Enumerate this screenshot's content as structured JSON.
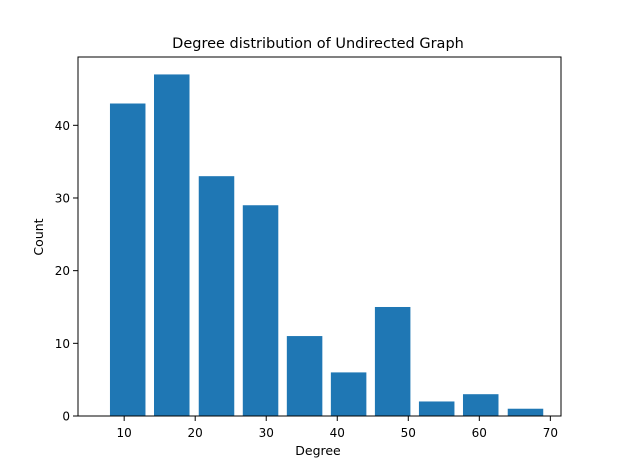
{
  "chart_data": {
    "type": "bar",
    "title": "Degree distribution of Undirected Graph",
    "xlabel": "Degree",
    "ylabel": "Count",
    "x": [
      10.5,
      16.7,
      23.0,
      29.2,
      35.4,
      41.6,
      47.8,
      54.0,
      60.2,
      66.5
    ],
    "values": [
      43,
      47,
      33,
      29,
      11,
      6,
      15,
      2,
      3,
      1
    ],
    "bar_width": 5,
    "xlim": [
      3.5,
      71.5
    ],
    "ylim": [
      0,
      49.4
    ],
    "xticks": [
      10,
      20,
      30,
      40,
      50,
      60,
      70
    ],
    "yticks": [
      0,
      10,
      20,
      30,
      40
    ],
    "grid": false,
    "legend": "none",
    "colors": {
      "bar": "#1f77b4",
      "axis": "#000000",
      "background": "#ffffff"
    }
  }
}
